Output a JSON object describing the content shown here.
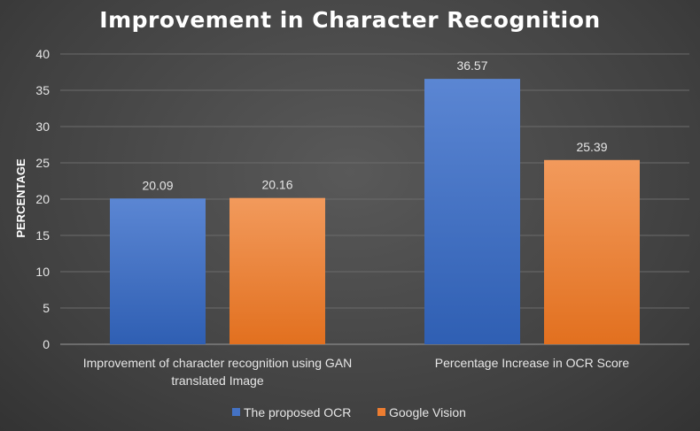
{
  "chart_data": {
    "type": "bar",
    "title": "Improvement in Character Recognition",
    "xlabel": "",
    "ylabel": "PERCENTAGE",
    "ylim": [
      0,
      40
    ],
    "yticks": [
      0,
      5,
      10,
      15,
      20,
      25,
      30,
      35,
      40
    ],
    "grid": true,
    "legend_position": "bottom",
    "categories": [
      [
        "Improvement of character recognition  using GAN",
        "translated Image"
      ],
      [
        "Percentage Increase in OCR Score"
      ]
    ],
    "series": [
      {
        "name": "The proposed OCR",
        "values": [
          20.09,
          36.57
        ],
        "labels": [
          "20.09",
          "36.57"
        ],
        "color": "#4472c4"
      },
      {
        "name": "Google Vision",
        "values": [
          20.16,
          25.39
        ],
        "labels": [
          "20.16",
          "25.39"
        ],
        "color": "#ed7d31"
      }
    ]
  }
}
